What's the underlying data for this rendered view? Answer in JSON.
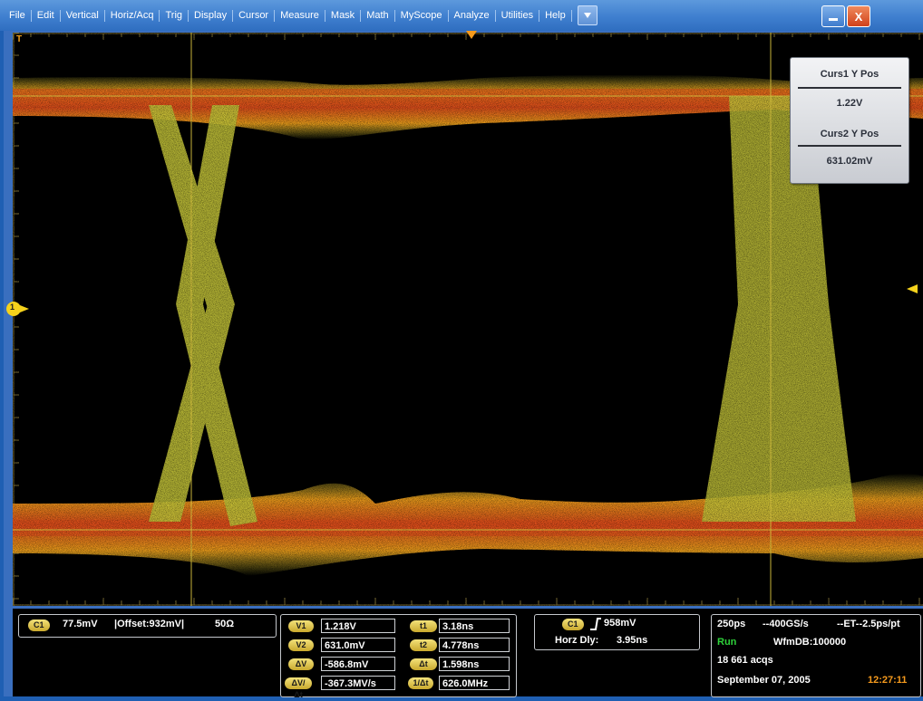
{
  "menu": {
    "items": [
      "File",
      "Edit",
      "Vertical",
      "Horiz/Acq",
      "Trig",
      "Display",
      "Cursor",
      "Measure",
      "Mask",
      "Math",
      "MyScope",
      "Analyze",
      "Utilities",
      "Help"
    ]
  },
  "window": {
    "minimize_icon": "minimize-icon",
    "close_label": "X"
  },
  "cursor_panel": {
    "curs1_label": "Curs1 Y Pos",
    "curs1_value": "1.22V",
    "curs2_label": "Curs2 Y Pos",
    "curs2_value": "631.02mV"
  },
  "channel_marker": "1",
  "trigger_marker_icon": "trigger-position-icon",
  "channel_box": {
    "badge": "C1",
    "scale": "77.5mV",
    "offset": "|Offset:932mV|",
    "impedance": "50Ω"
  },
  "cursor_readout": {
    "rows": [
      {
        "vlabel": "V1",
        "vvalue": "1.218V",
        "tlabel": "t1",
        "tvalue": "3.18ns"
      },
      {
        "vlabel": "V2",
        "vvalue": "631.0mV",
        "tlabel": "t2",
        "tvalue": "4.778ns"
      },
      {
        "vlabel": "ΔV",
        "vvalue": "-586.8mV",
        "tlabel": "Δt",
        "tvalue": "1.598ns"
      },
      {
        "vlabel": "ΔV/Δt",
        "vvalue": "-367.3MV/s",
        "tlabel": "1/Δt",
        "tvalue": "626.0MHz"
      }
    ]
  },
  "trigger_box": {
    "badge": "C1",
    "level": "958mV",
    "horz_label": "Horz Dly:",
    "horz_value": "3.95ns"
  },
  "acq_box": {
    "timebase": "250ps",
    "sample_rate": "--400GS/s",
    "mode": "--ET--2.5ps/pt",
    "run_state": "Run",
    "db": "WfmDB:100000",
    "acqs": "18 661 acqs",
    "date": "September 07, 2005",
    "time": "12:27:11"
  },
  "colors": {
    "menubar": "#3f7fcf",
    "screen_bg": "#000000",
    "waveform_hot": "#e8501c",
    "waveform_mid": "#f5a31c",
    "waveform_cool": "#d8d63a",
    "cursor_line": "#c8b43a",
    "run_green": "#2ed23a",
    "time_orange": "#f59a1d"
  }
}
